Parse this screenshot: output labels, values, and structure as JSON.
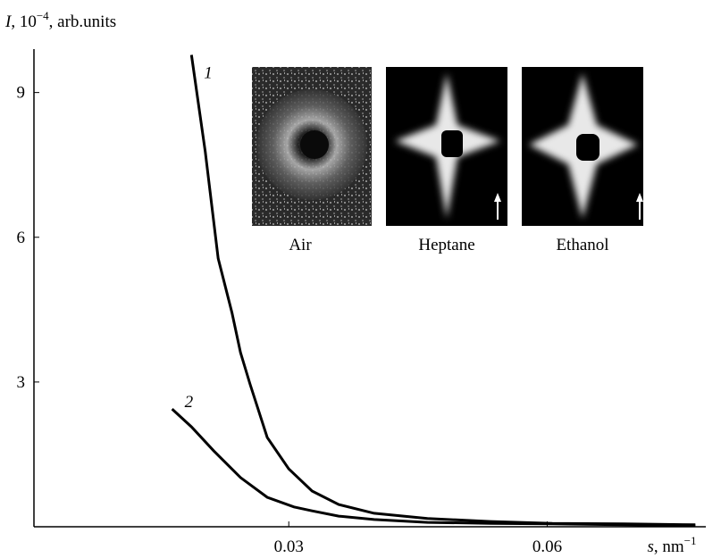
{
  "chart_data": {
    "type": "line",
    "ylabel": {
      "symbol": "I",
      "text": ", 10",
      "exponent": "−4",
      "unit": ", arb.units"
    },
    "xlabel": {
      "symbol": "s",
      "text": ", nm",
      "exponent": "−1"
    },
    "xlim": [
      0,
      0.078
    ],
    "ylim": [
      0,
      9.9
    ],
    "xticks": [
      0.03,
      0.06
    ],
    "yticks": [
      3,
      6,
      9
    ],
    "series": [
      {
        "name": "1",
        "color": "#000000",
        "x": [
          0.0187,
          0.0203,
          0.0218,
          0.0234,
          0.0244,
          0.0255,
          0.0275,
          0.03,
          0.0327,
          0.0358,
          0.0399,
          0.0461,
          0.0534,
          0.0606,
          0.0689,
          0.0772
        ],
        "values": [
          9.78,
          7.78,
          5.56,
          4.44,
          3.61,
          2.96,
          1.85,
          1.2,
          0.74,
          0.46,
          0.28,
          0.17,
          0.11,
          0.07,
          0.06,
          0.04
        ]
      },
      {
        "name": "2",
        "color": "#000000",
        "x": [
          0.01645,
          0.0187,
          0.0213,
          0.0244,
          0.0275,
          0.0306,
          0.0327,
          0.0358,
          0.0399,
          0.0461,
          0.0534,
          0.0606,
          0.0689,
          0.0772
        ],
        "values": [
          2.44,
          2.07,
          1.57,
          1.02,
          0.61,
          0.41,
          0.33,
          0.22,
          0.15,
          0.09,
          0.07,
          0.06,
          0.04,
          0.02
        ]
      }
    ],
    "insets": [
      "Air",
      "Heptane",
      "Ethanol"
    ]
  }
}
